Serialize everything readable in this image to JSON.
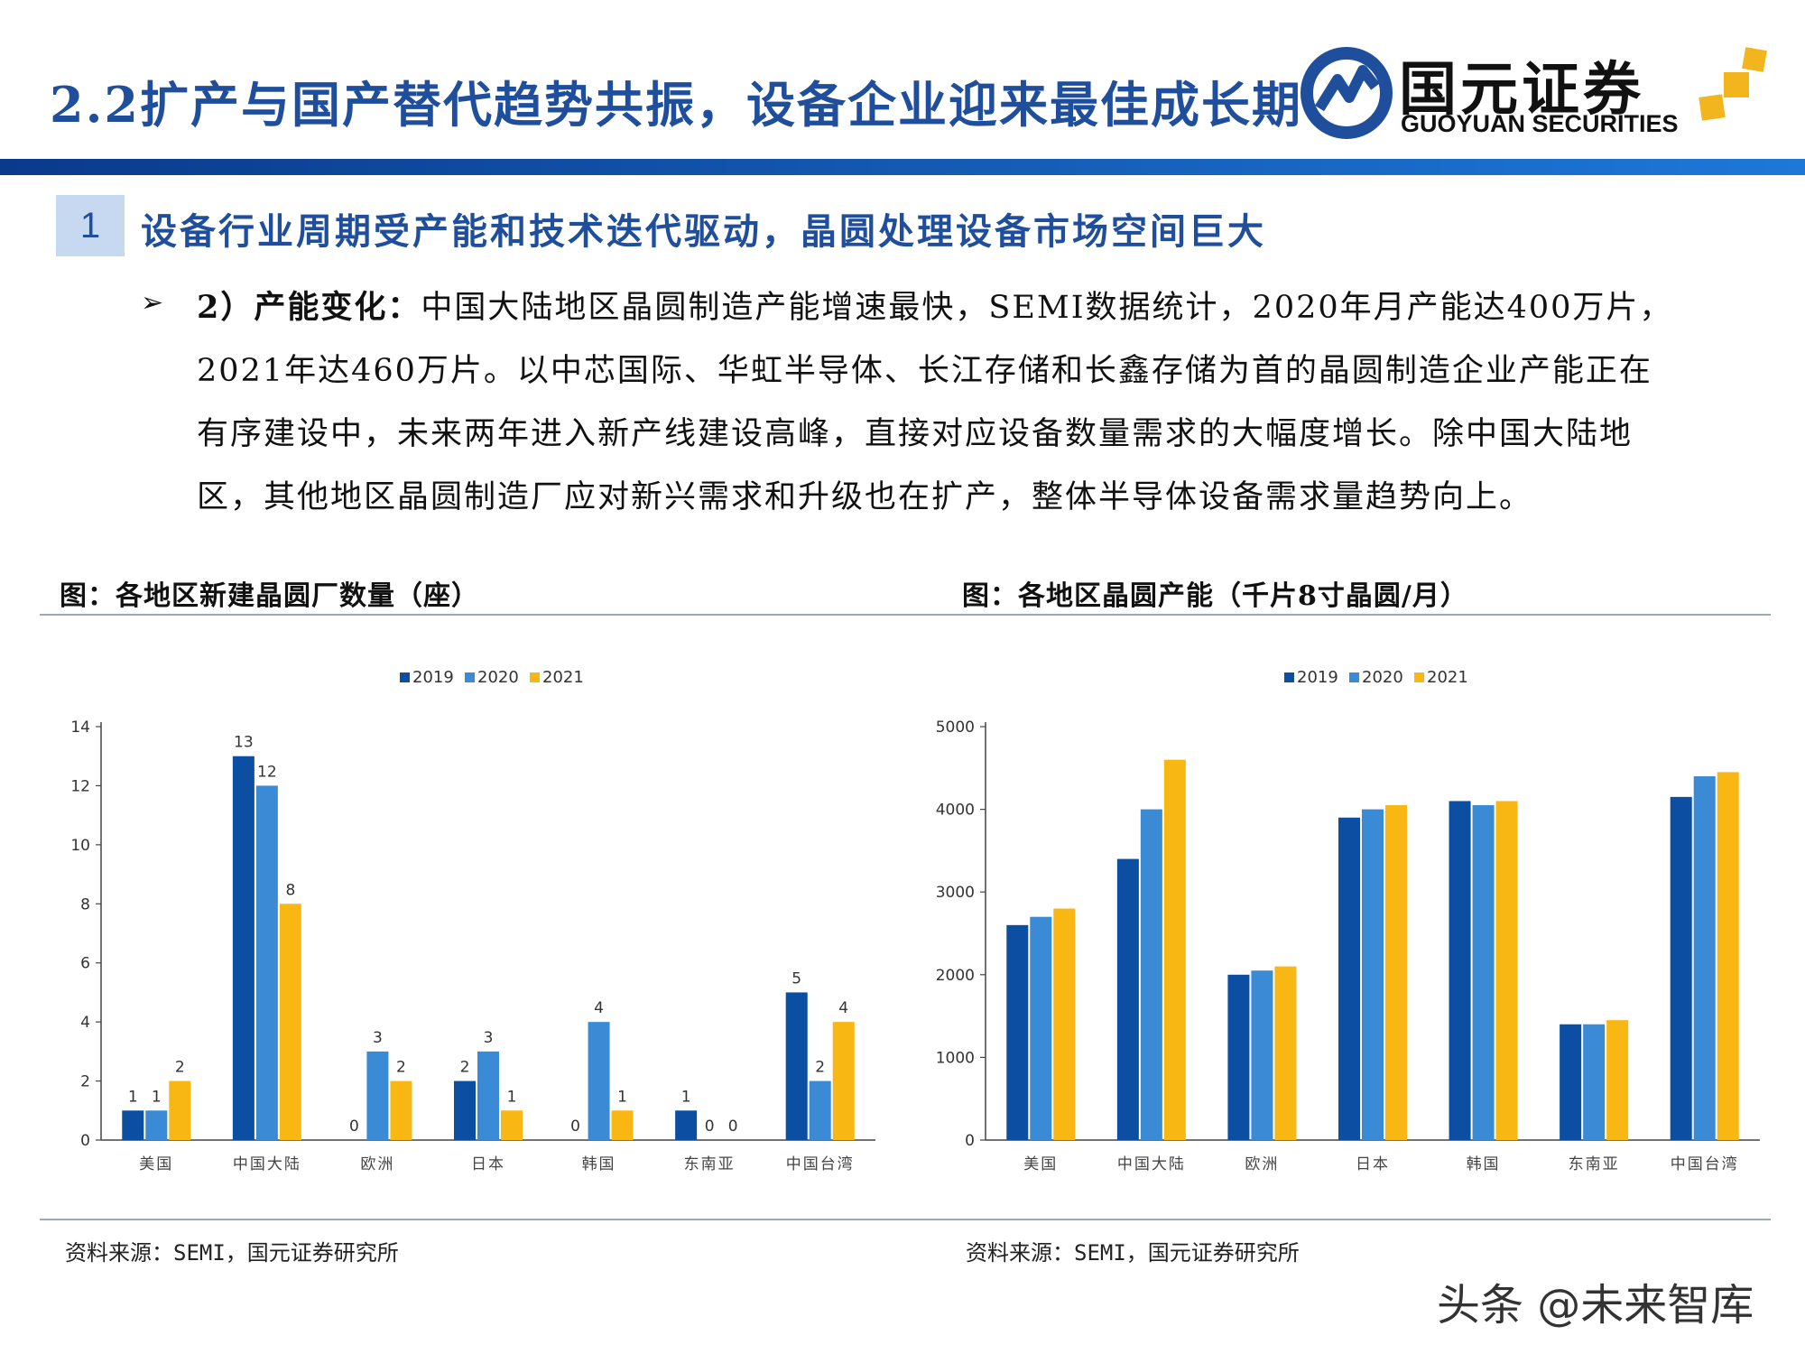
{
  "header": {
    "title": "2.2扩产与国产替代趋势共振，设备企业迎来最佳成长期",
    "logo_cn": "国元证券",
    "logo_en": "GUOYUAN SECURITIES"
  },
  "section": {
    "number": "1",
    "title": "设备行业周期受产能和技术迭代驱动，晶圆处理设备市场空间巨大"
  },
  "body": {
    "lead": "2）产能变化：",
    "line1": "中国大陆地区晶圆制造产能增速最快，SEMI数据统计，2020年月产能达400万片，",
    "line2": "2021年达460万片。以中芯国际、华虹半导体、长江存储和长鑫存储为首的晶圆制造企业产能正在",
    "line3": "有序建设中，未来两年进入新产线建设高峰，直接对应设备数量需求的大幅度增长。除中国大陆地",
    "line4": "区，其他地区晶圆制造厂应对新兴需求和升级也在扩产，整体半导体设备需求量趋势向上。"
  },
  "figures": {
    "left_title": "图：各地区新建晶圆厂数量（座）",
    "right_title": "图：各地区晶圆产能（千片8寸晶圆/月）",
    "left_source": "资料来源：SEMI，国元证券研究所",
    "right_source": "资料来源：SEMI，国元证券研究所"
  },
  "watermark": "头条 @未来智库",
  "colors": {
    "title_blue": "#1f4e9c",
    "s2019": "#0b4ea2",
    "s2020": "#3a8ad6",
    "s2021": "#f8b712"
  },
  "chart_data": [
    {
      "type": "bar",
      "categories": [
        "美国",
        "中国大陆",
        "欧洲",
        "日本",
        "韩国",
        "东南亚",
        "中国台湾"
      ],
      "series": [
        {
          "name": "2019",
          "values": [
            1,
            13,
            0,
            2,
            0,
            1,
            5
          ]
        },
        {
          "name": "2020",
          "values": [
            1,
            12,
            3,
            3,
            4,
            0,
            2
          ]
        },
        {
          "name": "2021",
          "values": [
            2,
            8,
            2,
            1,
            1,
            0,
            4
          ]
        }
      ],
      "ylim": [
        0,
        14
      ],
      "yticks": [
        0,
        2,
        4,
        6,
        8,
        10,
        12,
        14
      ],
      "data_labels": true,
      "legend": "top-center",
      "grid": false
    },
    {
      "type": "bar",
      "categories": [
        "美国",
        "中国大陆",
        "欧洲",
        "日本",
        "韩国",
        "东南亚",
        "中国台湾"
      ],
      "series": [
        {
          "name": "2019",
          "values": [
            2600,
            3400,
            2000,
            3900,
            4100,
            1400,
            4150
          ]
        },
        {
          "name": "2020",
          "values": [
            2700,
            4000,
            2050,
            4000,
            4050,
            1400,
            4400
          ]
        },
        {
          "name": "2021",
          "values": [
            2800,
            4600,
            2100,
            4050,
            4100,
            1450,
            4450
          ]
        }
      ],
      "ylim": [
        0,
        5000
      ],
      "yticks": [
        0,
        1000,
        2000,
        3000,
        4000,
        5000
      ],
      "data_labels": false,
      "legend": "top-center",
      "grid": false
    }
  ]
}
